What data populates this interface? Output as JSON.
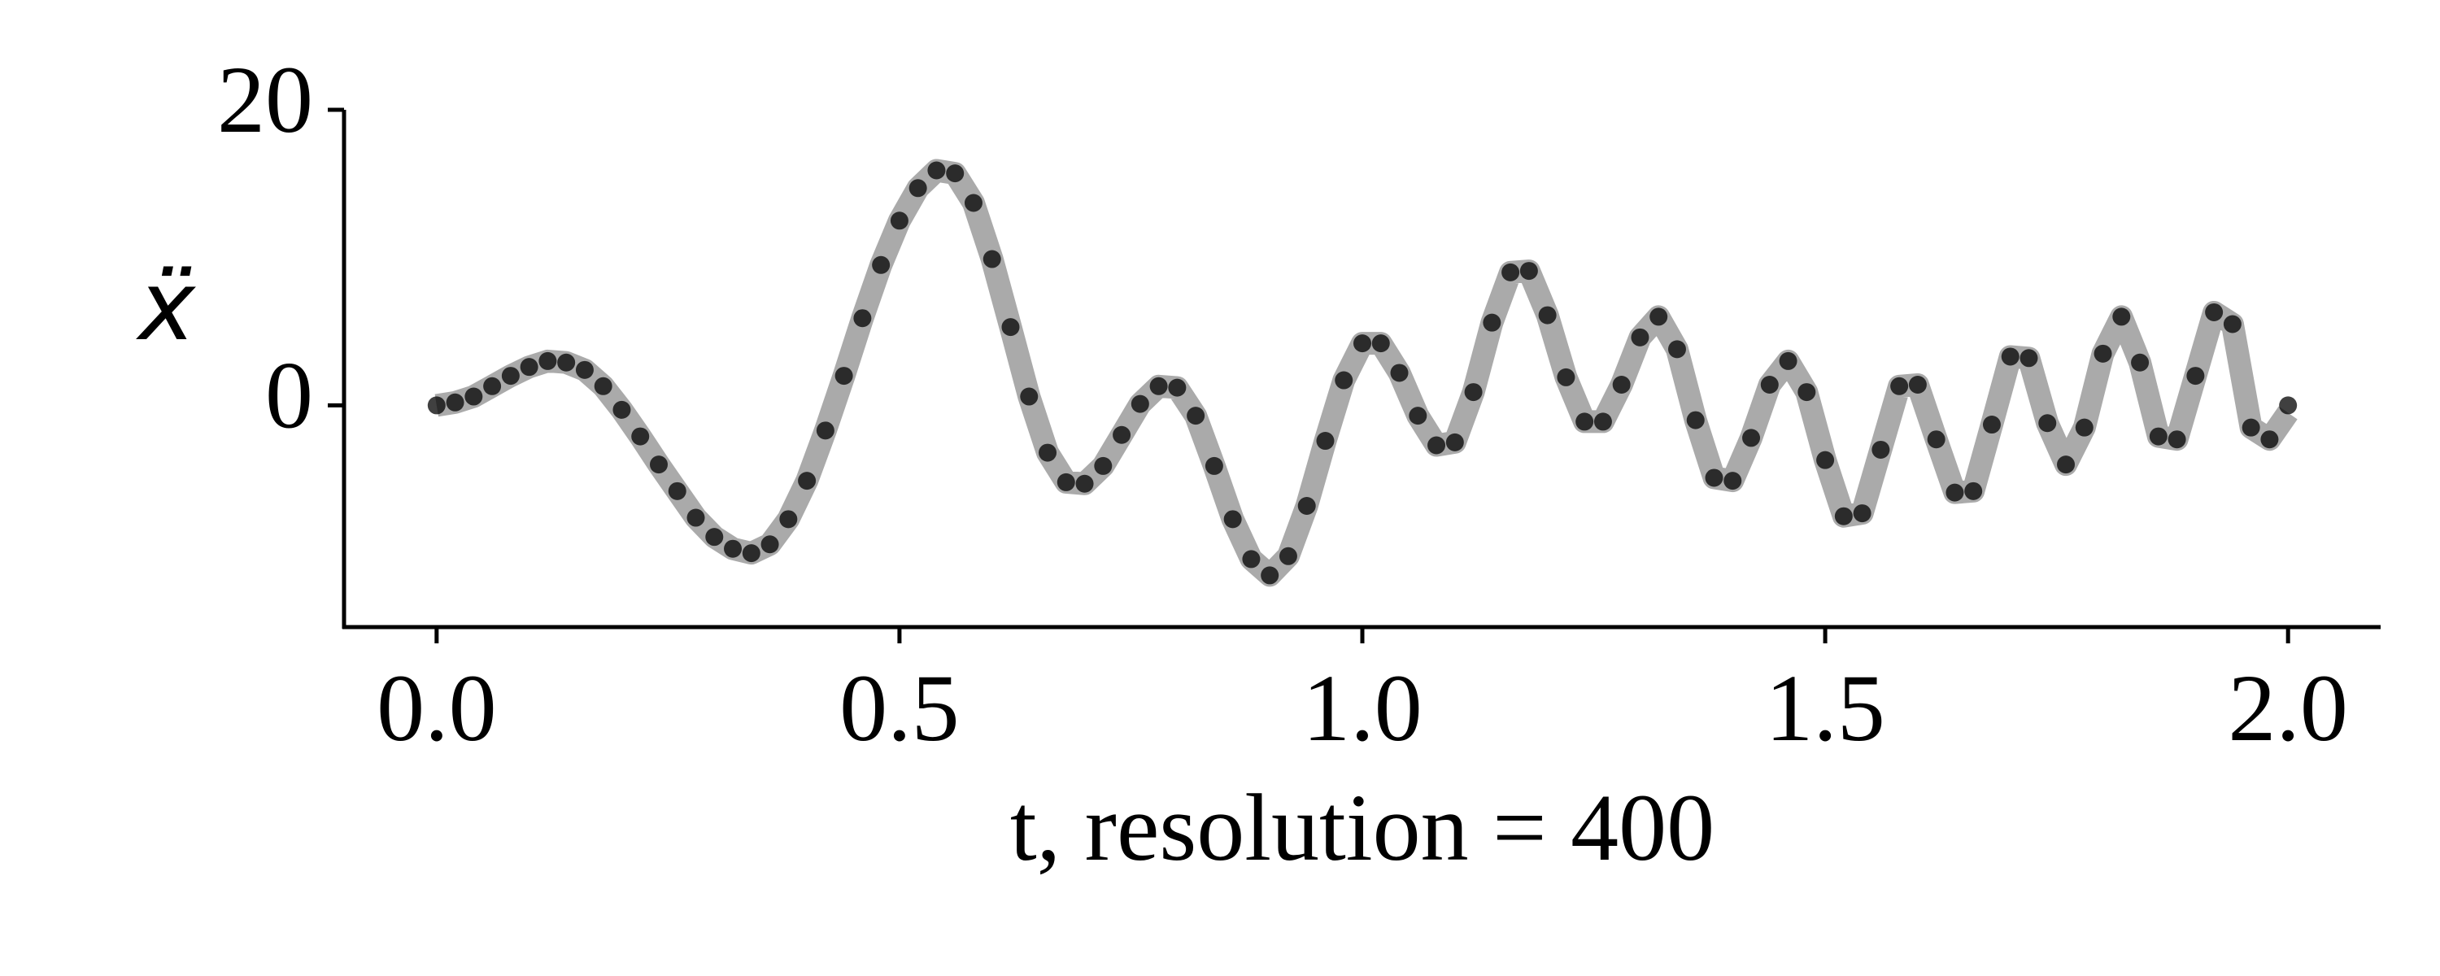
{
  "chart_data": {
    "type": "line",
    "xlabel": "t, resolution = 400",
    "ylabel": "ẍ",
    "x": [
      0,
      0.02,
      0.04,
      0.06,
      0.08,
      0.1,
      0.12,
      0.14,
      0.16,
      0.18,
      0.2,
      0.22,
      0.24,
      0.26,
      0.28,
      0.3,
      0.32,
      0.34,
      0.36,
      0.38,
      0.4,
      0.42,
      0.44,
      0.46,
      0.48,
      0.5,
      0.52,
      0.54,
      0.56,
      0.58,
      0.6,
      0.62,
      0.64,
      0.66,
      0.68,
      0.7,
      0.72,
      0.74,
      0.76,
      0.78,
      0.8,
      0.82,
      0.84,
      0.86,
      0.88,
      0.9,
      0.92,
      0.94,
      0.96,
      0.98,
      1.0,
      1.02,
      1.04,
      1.06,
      1.08,
      1.1,
      1.12,
      1.14,
      1.16,
      1.18,
      1.2,
      1.22,
      1.24,
      1.26,
      1.28,
      1.3,
      1.32,
      1.34,
      1.36,
      1.38,
      1.4,
      1.42,
      1.44,
      1.46,
      1.48,
      1.5,
      1.52,
      1.54,
      1.56,
      1.58,
      1.6,
      1.62,
      1.64,
      1.66,
      1.68,
      1.7,
      1.72,
      1.74,
      1.76,
      1.78,
      1.8,
      1.82,
      1.84,
      1.86,
      1.88,
      1.9,
      1.92,
      1.94,
      1.96,
      1.98,
      2.0
    ],
    "series": [
      {
        "color": "#aaaaaa",
        "style": "line",
        "values": [
          0,
          0.2,
          0.6,
          1.3,
          2.0,
          2.6,
          3.0,
          2.9,
          2.4,
          1.3,
          -0.3,
          -2.1,
          -4.0,
          -5.8,
          -7.6,
          -8.9,
          -9.7,
          -10,
          -9.4,
          -7.7,
          -5.1,
          -1.7,
          2.0,
          5.9,
          9.5,
          12.5,
          14.7,
          15.9,
          15.7,
          13.7,
          9.9,
          5.3,
          0.6,
          -3.2,
          -5.2,
          -5.3,
          -4.1,
          -2.0,
          0.1,
          1.3,
          1.2,
          -0.7,
          -4.1,
          -7.7,
          -10.4,
          -11.5,
          -10.2,
          -6.8,
          -2.4,
          1.7,
          4.2,
          4.2,
          2.2,
          -0.7,
          -2.7,
          -2.5,
          0.9,
          5.6,
          9.0,
          9.1,
          6.1,
          1.9,
          -1.1,
          -1.1,
          1.4,
          4.6,
          6,
          3.8,
          -1.0,
          -4.9,
          -5.1,
          -2.2,
          1.4,
          3,
          0.9,
          -3.7,
          -7.5,
          -7.3,
          -3.0,
          1.3,
          1.4,
          -2.3,
          -5.9,
          -5.8,
          -1.3,
          3.3,
          3.2,
          -1.2,
          -4,
          -1.5,
          3.5,
          6,
          2.9,
          -2.1,
          -2.3,
          2.0,
          6.3,
          5.5,
          -1.5,
          -2.3,
          -0.5
        ]
      },
      {
        "color": "#000000",
        "style": "markers",
        "values": [
          0,
          0.2,
          0.6,
          1.3,
          2.0,
          2.6,
          3.0,
          2.9,
          2.4,
          1.3,
          -0.3,
          -2.1,
          -4.0,
          -5.8,
          -7.6,
          -8.9,
          -9.7,
          -10,
          -9.4,
          -7.7,
          -5.1,
          -1.7,
          2.0,
          5.9,
          9.5,
          12.5,
          14.7,
          15.9,
          15.7,
          13.7,
          9.9,
          5.3,
          0.6,
          -3.2,
          -5.2,
          -5.3,
          -4.1,
          -2.0,
          0.1,
          1.3,
          1.2,
          -0.7,
          -4.1,
          -7.7,
          -10.4,
          -11.5,
          -10.2,
          -6.8,
          -2.4,
          1.7,
          4.2,
          4.2,
          2.2,
          -0.7,
          -2.7,
          -2.5,
          0.9,
          5.6,
          9.0,
          9.1,
          6.1,
          1.9,
          -1.1,
          -1.1,
          1.4,
          4.6,
          6,
          3.8,
          -1.0,
          -4.9,
          -5.1,
          -2.2,
          1.4,
          3,
          0.9,
          -3.7,
          -7.5,
          -7.3,
          -3.0,
          1.3,
          1.4,
          -2.3,
          -5.9,
          -5.8,
          -1.3,
          3.3,
          3.2,
          -1.2,
          -4,
          -1.5,
          3.5,
          6,
          2.9,
          -2.1,
          -2.3,
          2.0,
          6.3,
          5.5,
          -1.5,
          -2.3,
          0
        ]
      }
    ],
    "xlim": [
      -0.1,
      2.1
    ],
    "ylim": [
      -15,
      20
    ],
    "xticks": [
      {
        "value": 0,
        "label": "0.0"
      },
      0.5,
      {
        "value": 1,
        "label": "1.0"
      },
      1.5,
      {
        "value": 2,
        "label": "2.0"
      }
    ],
    "yticks": [
      0,
      20
    ],
    "grid": false
  }
}
